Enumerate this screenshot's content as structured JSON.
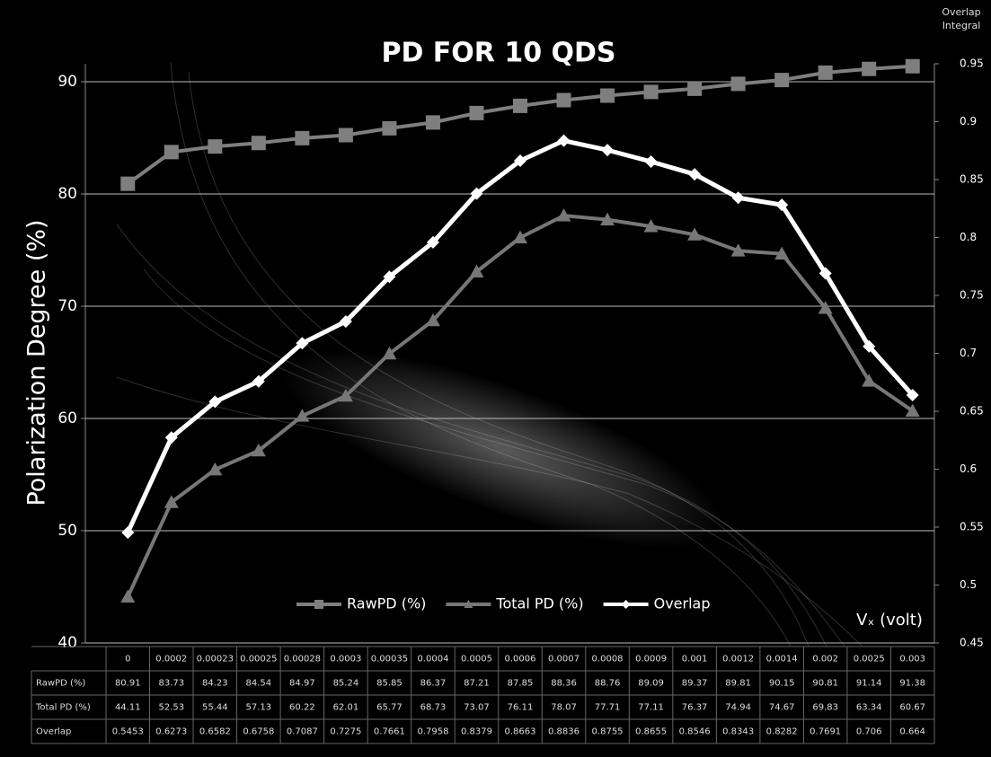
{
  "chart_data": {
    "type": "line",
    "title": "PD FOR 10 QDS",
    "y_label": "Polarization Degree (%)",
    "y2_label": "Overlap Integral",
    "x_label": "Vₓ (volt)",
    "categories": [
      "0",
      "0.0002",
      "0.00023",
      "0.00025",
      "0.00028",
      "0.0003",
      "0.00035",
      "0.0004",
      "0.0005",
      "0.0006",
      "0.0007",
      "0.0008",
      "0.0009",
      "0.001",
      "0.0012",
      "0.0014",
      "0.002",
      "0.0025",
      "0.003"
    ],
    "series": [
      {
        "name": "RawPD (%)",
        "color": "#7f7f7f",
        "marker": "square",
        "values": [
          80.91,
          83.73,
          84.23,
          84.54,
          84.97,
          85.24,
          85.85,
          86.37,
          87.21,
          87.85,
          88.36,
          88.76,
          89.09,
          89.37,
          89.81,
          90.15,
          90.81,
          91.14,
          91.38
        ]
      },
      {
        "name": "Total PD (%)",
        "color": "#777777",
        "marker": "triangle",
        "values": [
          44.11,
          52.53,
          55.44,
          57.13,
          60.22,
          62.01,
          65.77,
          68.73,
          73.07,
          76.11,
          78.07,
          77.71,
          77.11,
          76.37,
          74.94,
          74.67,
          69.83,
          63.34,
          60.67
        ]
      },
      {
        "name": "Overlap",
        "color": "#ffffff",
        "marker": "diamond",
        "axis": "y2",
        "values": [
          0.5453,
          0.6273,
          0.6582,
          0.6758,
          0.7087,
          0.7275,
          0.7661,
          0.7958,
          0.8379,
          0.8663,
          0.8836,
          0.8755,
          0.8655,
          0.8546,
          0.8343,
          0.8282,
          0.7691,
          0.706,
          0.664
        ]
      }
    ],
    "ylim": [
      40,
      91.6
    ],
    "yticks": [
      40,
      50,
      60,
      70,
      80,
      90
    ],
    "y2lim": [
      0.45,
      0.95
    ],
    "y2ticks": [
      0.45,
      0.5,
      0.55,
      0.6,
      0.65,
      0.7,
      0.75,
      0.8,
      0.85,
      0.9,
      0.95
    ],
    "grid": true,
    "legend": "bottom"
  }
}
